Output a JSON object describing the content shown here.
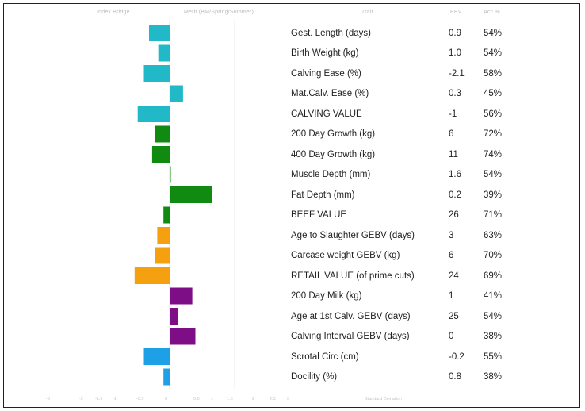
{
  "chart_data": {
    "type": "bar",
    "orientation": "horizontal",
    "header": {
      "left_a": "Index Bridge",
      "left_b": "Merit (BM/Spring/Summer)",
      "trait": "Trait",
      "ebv": "EBV",
      "acc": "Acc %"
    },
    "rows": [
      {
        "trait": "Gest. Length (days)",
        "ebv": "0.9",
        "acc": "54%",
        "bar": -1.0,
        "color": "#21b8c8"
      },
      {
        "trait": "Birth Weight (kg)",
        "ebv": "1.0",
        "acc": "54%",
        "bar": -0.55,
        "color": "#21b8c8"
      },
      {
        "trait": "Calving Ease (%)",
        "ebv": "-2.1",
        "acc": "58%",
        "bar": -1.25,
        "color": "#21b8c8"
      },
      {
        "trait": "Mat.Calv. Ease (%)",
        "ebv": "0.3",
        "acc": "45%",
        "bar": 0.65,
        "color": "#21b8c8"
      },
      {
        "trait": "CALVING VALUE",
        "ebv": "-1",
        "acc": "56%",
        "bar": -1.55,
        "color": "#21b8c8"
      },
      {
        "trait": "200 Day Growth (kg)",
        "ebv": "6",
        "acc": "72%",
        "bar": -0.7,
        "color": "#118a11"
      },
      {
        "trait": "400 Day Growth (kg)",
        "ebv": "11",
        "acc": "74%",
        "bar": -0.85,
        "color": "#118a11"
      },
      {
        "trait": "Muscle Depth (mm)",
        "ebv": "1.6",
        "acc": "54%",
        "bar": 0.05,
        "color": "#118a11"
      },
      {
        "trait": "Fat Depth (mm)",
        "ebv": "0.2",
        "acc": "39%",
        "bar": 2.05,
        "color": "#118a11"
      },
      {
        "trait": "BEEF VALUE",
        "ebv": "26",
        "acc": "71%",
        "bar": -0.3,
        "color": "#118a11"
      },
      {
        "trait": "Age to Slaughter GEBV (days)",
        "ebv": "3",
        "acc": "63%",
        "bar": -0.6,
        "color": "#f5a10f"
      },
      {
        "trait": "Carcase weight GEBV (kg)",
        "ebv": "6",
        "acc": "70%",
        "bar": -0.7,
        "color": "#f5a10f"
      },
      {
        "trait": "RETAIL VALUE (of prime cuts)",
        "ebv": "24",
        "acc": "69%",
        "bar": -1.7,
        "color": "#f5a10f"
      },
      {
        "trait": "200 Day Milk (kg)",
        "ebv": "1",
        "acc": "41%",
        "bar": 1.1,
        "color": "#7d0e86"
      },
      {
        "trait": "Age at 1st Calv. GEBV (days)",
        "ebv": "25",
        "acc": "54%",
        "bar": 0.4,
        "color": "#7d0e86"
      },
      {
        "trait": "Calving Interval GEBV (days)",
        "ebv": "0",
        "acc": "38%",
        "bar": 1.25,
        "color": "#7d0e86"
      },
      {
        "trait": "Scrotal Circ (cm)",
        "ebv": "-0.2",
        "acc": "55%",
        "bar": -1.25,
        "color": "#1ea0e6"
      },
      {
        "trait": "Docility (%)",
        "ebv": "0.8",
        "acc": "38%",
        "bar": -0.3,
        "color": "#1ea0e6"
      }
    ],
    "footer": {
      "scale": [
        "-3",
        "-2",
        "-1.5",
        "-1",
        "-0.5",
        "0",
        "0.5",
        "1",
        "1.5",
        "2",
        "2.5",
        "3"
      ],
      "right_note": "Standard Deviation"
    },
    "xlim": [
      -3,
      3
    ],
    "grid": false
  }
}
